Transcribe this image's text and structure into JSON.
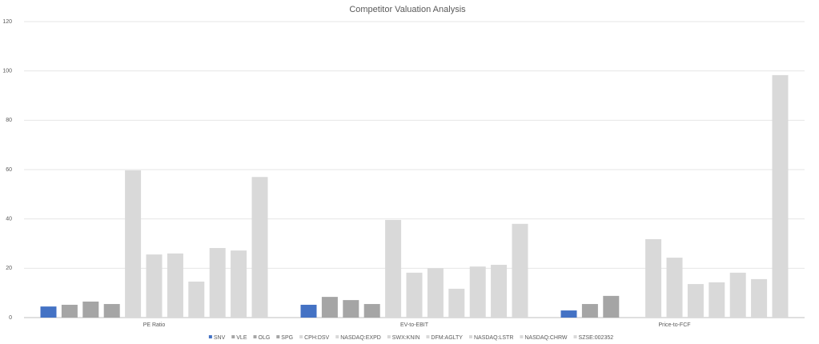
{
  "chart_data": {
    "type": "bar",
    "title": "Competitor Valuation Analysis",
    "categories": [
      "PE Ratio",
      "EV-to-EBIT",
      "Price-to-FCF"
    ],
    "ylim": [
      0,
      120
    ],
    "yticks": [
      0,
      20,
      40,
      60,
      80,
      100,
      120
    ],
    "grid": true,
    "series": [
      {
        "name": "SNV",
        "color": "#4472c4",
        "values": [
          4.5,
          5.2,
          2.9
        ]
      },
      {
        "name": "VLE",
        "color": "#a5a5a5",
        "values": [
          5.2,
          8.4,
          5.5
        ]
      },
      {
        "name": "OLG",
        "color": "#a5a5a5",
        "values": [
          6.5,
          7.1,
          8.8
        ]
      },
      {
        "name": "SPG",
        "color": "#a5a5a5",
        "values": [
          5.5,
          5.5,
          null
        ]
      },
      {
        "name": "CPH:DSV",
        "color": "#d9d9d9",
        "values": [
          59.7,
          39.6,
          31.8
        ]
      },
      {
        "name": "NASDAQ:EXPD",
        "color": "#d9d9d9",
        "values": [
          25.6,
          18.2,
          24.3
        ]
      },
      {
        "name": "SWX:KNIN",
        "color": "#d9d9d9",
        "values": [
          26,
          20,
          13.6
        ]
      },
      {
        "name": "DFM:AGLTY",
        "color": "#d9d9d9",
        "values": [
          14.6,
          11.7,
          14.3
        ]
      },
      {
        "name": "NASDAQ:LSTR",
        "color": "#d9d9d9",
        "values": [
          28.2,
          20.7,
          18.2
        ]
      },
      {
        "name": "NASDAQ:CHRW",
        "color": "#d9d9d9",
        "values": [
          27.2,
          21.4,
          15.6
        ]
      },
      {
        "name": "SZSE:002352",
        "color": "#d9d9d9",
        "values": [
          57,
          38,
          98.3
        ]
      }
    ]
  }
}
